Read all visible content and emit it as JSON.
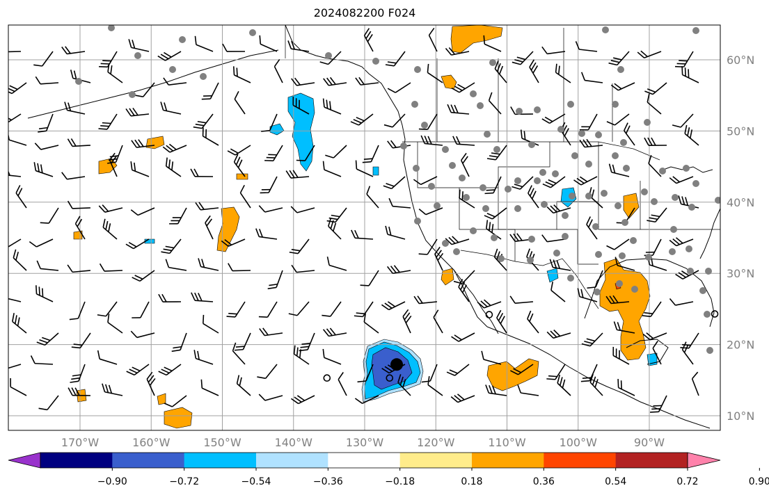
{
  "title": "2024082200 F024",
  "map": {
    "extent": {
      "lon_min": -180,
      "lon_max": -80,
      "lat_min": 8,
      "lat_max": 64
    },
    "gridlines": true,
    "lat_labels": [
      {
        "lat": 60,
        "text": "60°N"
      },
      {
        "lat": 50,
        "text": "50°N"
      },
      {
        "lat": 40,
        "text": "40°N"
      },
      {
        "lat": 30,
        "text": "30°N"
      },
      {
        "lat": 20,
        "text": "20°N"
      },
      {
        "lat": 10,
        "text": "10°N"
      }
    ],
    "lon_labels": [
      {
        "lon": -170,
        "text": "170°W"
      },
      {
        "lon": -160,
        "text": "160°W"
      },
      {
        "lon": -150,
        "text": "150°W"
      },
      {
        "lon": -140,
        "text": "140°W"
      },
      {
        "lon": -130,
        "text": "130°W"
      },
      {
        "lon": -120,
        "text": "120°W"
      },
      {
        "lon": -110,
        "text": "110°W"
      },
      {
        "lon": -100,
        "text": "100°W"
      },
      {
        "lon": -90,
        "text": "90°W"
      }
    ],
    "storm_marker": {
      "lon": -125.5,
      "lat": 17.2
    },
    "open_circles": [
      {
        "lon": -135.3,
        "lat": 15.3
      },
      {
        "lon": -126.5,
        "lat": 15.3
      },
      {
        "lon": -112.5,
        "lat": 24.2
      },
      {
        "lon": -80.8,
        "lat": 24.3
      }
    ],
    "station_dot_color": "#808080"
  },
  "colorbar": {
    "colors": [
      "#9932CC",
      "#000080",
      "#3A5FCD",
      "#00BFFF",
      "#B0E2FF",
      "#FFFFFF",
      "#FFEC8B",
      "#FFA500",
      "#FF4500",
      "#B22222",
      "#FF82AB"
    ],
    "tick_labels": [
      "−0.90",
      "−0.72",
      "−0.54",
      "−0.36",
      "−0.18",
      "0.18",
      "0.36",
      "0.54",
      "0.72",
      "0.90"
    ]
  },
  "contour_colors": {
    "orange": "#FFA500",
    "yellow": "#FFEC8B",
    "red": "#FF4500",
    "light_blue": "#B0E2FF",
    "cyan": "#00BFFF",
    "blue": "#3A5FCD"
  }
}
